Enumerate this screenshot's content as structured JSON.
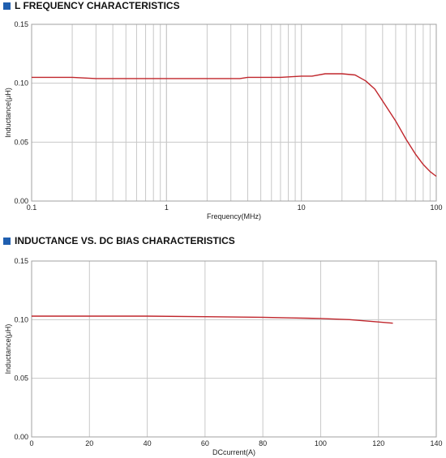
{
  "colors": {
    "accent": "#1f5fb0",
    "curve": "#c0262c",
    "grid": "#c8c8c8",
    "frame": "#a0a0a0"
  },
  "chart_data": [
    {
      "type": "line",
      "title": "L FREQUENCY CHARACTERISTICS",
      "xlabel": "Frequency(MHz)",
      "ylabel": "Inductance(μH)",
      "xscale": "log",
      "xlim": [
        0.1,
        100
      ],
      "ylim": [
        0,
        0.15
      ],
      "x_ticks": [
        "0.1",
        "1",
        "10",
        "100"
      ],
      "y_ticks": [
        "0.00",
        "0.05",
        "0.10",
        "0.15"
      ],
      "grid": true,
      "series": [
        {
          "x": [
            0.1,
            0.15,
            0.2,
            0.3,
            0.5,
            1,
            2,
            3,
            3.5,
            4,
            5,
            7,
            10,
            12,
            15,
            20,
            25,
            30,
            35,
            40,
            50,
            60,
            70,
            80,
            90,
            100
          ],
          "y": [
            0.105,
            0.105,
            0.105,
            0.104,
            0.104,
            0.104,
            0.104,
            0.104,
            0.104,
            0.105,
            0.105,
            0.105,
            0.106,
            0.106,
            0.108,
            0.108,
            0.107,
            0.102,
            0.095,
            0.085,
            0.068,
            0.052,
            0.04,
            0.031,
            0.025,
            0.021
          ]
        }
      ]
    },
    {
      "type": "line",
      "title": "INDUCTANCE VS. DC BIAS CHARACTERISTICS",
      "xlabel": "DCcurrent(A)",
      "ylabel": "Inductance(μH)",
      "xlim": [
        0,
        140
      ],
      "ylim": [
        0,
        0.15
      ],
      "x_ticks": [
        "0",
        "20",
        "40",
        "60",
        "80",
        "100",
        "120",
        "140"
      ],
      "y_ticks": [
        "0.00",
        "0.05",
        "0.10",
        "0.15"
      ],
      "grid": true,
      "series": [
        {
          "x": [
            0,
            20,
            40,
            60,
            80,
            90,
            100,
            110,
            120,
            125
          ],
          "y": [
            0.103,
            0.103,
            0.103,
            0.1025,
            0.102,
            0.1015,
            0.101,
            0.1,
            0.098,
            0.097
          ]
        }
      ]
    }
  ]
}
